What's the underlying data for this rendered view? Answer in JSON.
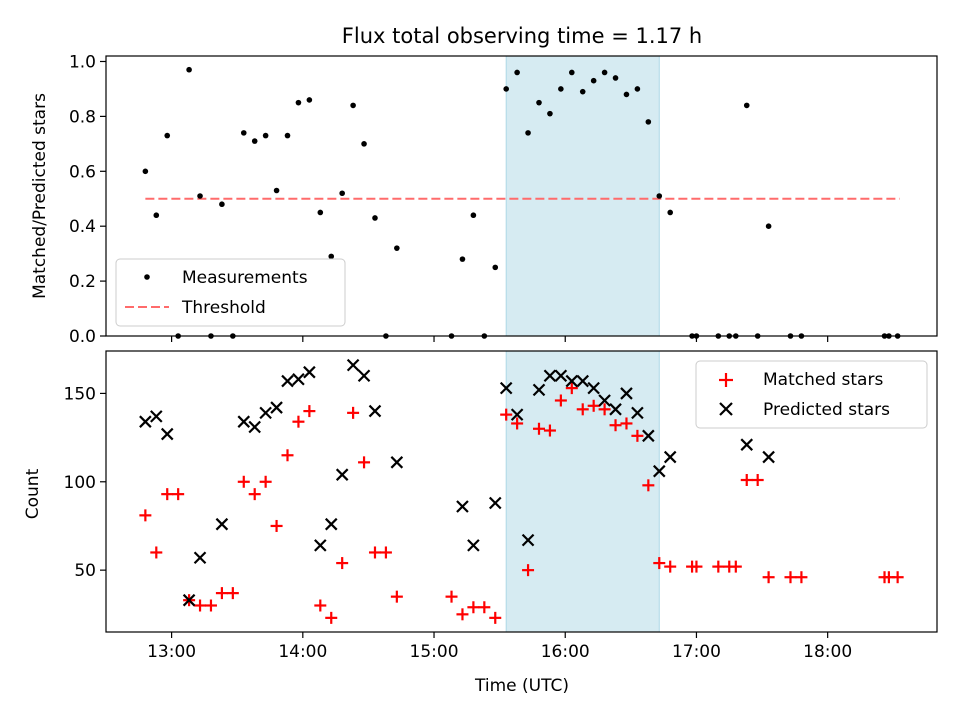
{
  "colors": {
    "measurement": "#000000",
    "threshold": "#ff6b6b",
    "matched": "#ff0000",
    "predicted": "#000000",
    "highlight": "#add8e6"
  },
  "chart_data": [
    {
      "type": "scatter",
      "title": "Flux total observing time = 1.17 h",
      "xlabel": "",
      "ylabel": "Matched/Predicted stars",
      "xlim": [
        "12:30",
        "18:50"
      ],
      "ylim": [
        0,
        1.02
      ],
      "y_ticks": [
        "0.0",
        "0.2",
        "0.4",
        "0.6",
        "0.8",
        "1.0"
      ],
      "legend_position": "lower-left",
      "highlight_span": [
        "15:33",
        "16:43"
      ],
      "series": [
        {
          "name": "Measurements",
          "marker": "dot",
          "points": [
            [
              "12:48",
              0.6
            ],
            [
              "12:53",
              0.44
            ],
            [
              "12:58",
              0.73
            ],
            [
              "13:03",
              0.0
            ],
            [
              "13:08",
              0.97
            ],
            [
              "13:13",
              0.51
            ],
            [
              "13:18",
              0.0
            ],
            [
              "13:23",
              0.48
            ],
            [
              "13:28",
              0.0
            ],
            [
              "13:33",
              0.74
            ],
            [
              "13:38",
              0.71
            ],
            [
              "13:43",
              0.73
            ],
            [
              "13:48",
              0.53
            ],
            [
              "13:53",
              0.73
            ],
            [
              "13:58",
              0.85
            ],
            [
              "14:03",
              0.86
            ],
            [
              "14:08",
              0.45
            ],
            [
              "14:13",
              0.29
            ],
            [
              "14:18",
              0.52
            ],
            [
              "14:23",
              0.84
            ],
            [
              "14:28",
              0.7
            ],
            [
              "14:33",
              0.43
            ],
            [
              "14:38",
              0.0
            ],
            [
              "14:43",
              0.32
            ],
            [
              "15:08",
              0.0
            ],
            [
              "15:13",
              0.28
            ],
            [
              "15:18",
              0.44
            ],
            [
              "15:23",
              0.0
            ],
            [
              "15:28",
              0.25
            ],
            [
              "15:33",
              0.9
            ],
            [
              "15:38",
              0.96
            ],
            [
              "15:43",
              0.74
            ],
            [
              "15:48",
              0.85
            ],
            [
              "15:53",
              0.81
            ],
            [
              "15:58",
              0.9
            ],
            [
              "16:03",
              0.96
            ],
            [
              "16:08",
              0.89
            ],
            [
              "16:13",
              0.93
            ],
            [
              "16:18",
              0.96
            ],
            [
              "16:23",
              0.94
            ],
            [
              "16:28",
              0.88
            ],
            [
              "16:33",
              0.9
            ],
            [
              "16:38",
              0.78
            ],
            [
              "16:43",
              0.51
            ],
            [
              "16:48",
              0.45
            ],
            [
              "16:58",
              0.0
            ],
            [
              "17:00",
              0.0
            ],
            [
              "17:10",
              0.0
            ],
            [
              "17:15",
              0.0
            ],
            [
              "17:18",
              0.0
            ],
            [
              "17:23",
              0.84
            ],
            [
              "17:28",
              0.0
            ],
            [
              "17:33",
              0.4
            ],
            [
              "17:43",
              0.0
            ],
            [
              "17:48",
              0.0
            ],
            [
              "18:26",
              0.0
            ],
            [
              "18:28",
              0.0
            ],
            [
              "18:32",
              0.0
            ]
          ]
        },
        {
          "name": "Threshold",
          "marker": "dashed-line",
          "points": [
            [
              "12:48",
              0.5
            ],
            [
              "18:33",
              0.5
            ]
          ]
        }
      ]
    },
    {
      "type": "scatter",
      "title": "",
      "xlabel": "Time (UTC)",
      "ylabel": "Count",
      "xlim": [
        "12:30",
        "18:50"
      ],
      "ylim": [
        15,
        174
      ],
      "y_ticks": [
        "50",
        "100",
        "150"
      ],
      "x_ticks": [
        "13:00",
        "14:00",
        "15:00",
        "16:00",
        "17:00",
        "18:00"
      ],
      "legend_position": "top-right",
      "highlight_span": [
        "15:33",
        "16:43"
      ],
      "series": [
        {
          "name": "Matched stars",
          "marker": "plus",
          "points": [
            [
              "12:48",
              81
            ],
            [
              "12:53",
              60
            ],
            [
              "12:58",
              93
            ],
            [
              "13:03",
              93
            ],
            [
              "13:08",
              33
            ],
            [
              "13:13",
              30
            ],
            [
              "13:18",
              30
            ],
            [
              "13:23",
              37
            ],
            [
              "13:28",
              37
            ],
            [
              "13:33",
              100
            ],
            [
              "13:38",
              93
            ],
            [
              "13:43",
              100
            ],
            [
              "13:48",
              75
            ],
            [
              "13:53",
              115
            ],
            [
              "13:58",
              134
            ],
            [
              "14:03",
              140
            ],
            [
              "14:08",
              30
            ],
            [
              "14:13",
              23
            ],
            [
              "14:18",
              54
            ],
            [
              "14:23",
              139
            ],
            [
              "14:28",
              111
            ],
            [
              "14:33",
              60
            ],
            [
              "14:38",
              60
            ],
            [
              "14:43",
              35
            ],
            [
              "15:08",
              35
            ],
            [
              "15:13",
              25
            ],
            [
              "15:18",
              29
            ],
            [
              "15:23",
              29
            ],
            [
              "15:28",
              23
            ],
            [
              "15:33",
              138
            ],
            [
              "15:38",
              133
            ],
            [
              "15:43",
              50
            ],
            [
              "15:48",
              130
            ],
            [
              "15:53",
              129
            ],
            [
              "15:58",
              146
            ],
            [
              "16:03",
              153
            ],
            [
              "16:08",
              141
            ],
            [
              "16:13",
              143
            ],
            [
              "16:18",
              141
            ],
            [
              "16:23",
              132
            ],
            [
              "16:28",
              133
            ],
            [
              "16:33",
              126
            ],
            [
              "16:38",
              98
            ],
            [
              "16:43",
              54
            ],
            [
              "16:48",
              52
            ],
            [
              "16:58",
              52
            ],
            [
              "17:00",
              52
            ],
            [
              "17:10",
              52
            ],
            [
              "17:15",
              52
            ],
            [
              "17:18",
              52
            ],
            [
              "17:23",
              101
            ],
            [
              "17:28",
              101
            ],
            [
              "17:33",
              46
            ],
            [
              "17:43",
              46
            ],
            [
              "17:48",
              46
            ],
            [
              "18:26",
              46
            ],
            [
              "18:28",
              46
            ],
            [
              "18:32",
              46
            ]
          ]
        },
        {
          "name": "Predicted stars",
          "marker": "x",
          "points": [
            [
              "12:48",
              134
            ],
            [
              "12:53",
              137
            ],
            [
              "12:58",
              127
            ],
            [
              "13:08",
              33
            ],
            [
              "13:13",
              57
            ],
            [
              "13:23",
              76
            ],
            [
              "13:33",
              134
            ],
            [
              "13:38",
              131
            ],
            [
              "13:43",
              139
            ],
            [
              "13:48",
              142
            ],
            [
              "13:53",
              157
            ],
            [
              "13:58",
              158
            ],
            [
              "14:03",
              162
            ],
            [
              "14:08",
              64
            ],
            [
              "14:13",
              76
            ],
            [
              "14:18",
              104
            ],
            [
              "14:23",
              166
            ],
            [
              "14:28",
              160
            ],
            [
              "14:33",
              140
            ],
            [
              "14:43",
              111
            ],
            [
              "15:13",
              86
            ],
            [
              "15:18",
              64
            ],
            [
              "15:28",
              88
            ],
            [
              "15:33",
              153
            ],
            [
              "15:38",
              138
            ],
            [
              "15:43",
              67
            ],
            [
              "15:48",
              152
            ],
            [
              "15:53",
              160
            ],
            [
              "15:58",
              160
            ],
            [
              "16:03",
              157
            ],
            [
              "16:08",
              157
            ],
            [
              "16:13",
              153
            ],
            [
              "16:18",
              146
            ],
            [
              "16:23",
              141
            ],
            [
              "16:28",
              150
            ],
            [
              "16:33",
              139
            ],
            [
              "16:38",
              126
            ],
            [
              "16:43",
              106
            ],
            [
              "16:48",
              114
            ],
            [
              "17:23",
              121
            ],
            [
              "17:33",
              114
            ]
          ]
        }
      ]
    }
  ]
}
